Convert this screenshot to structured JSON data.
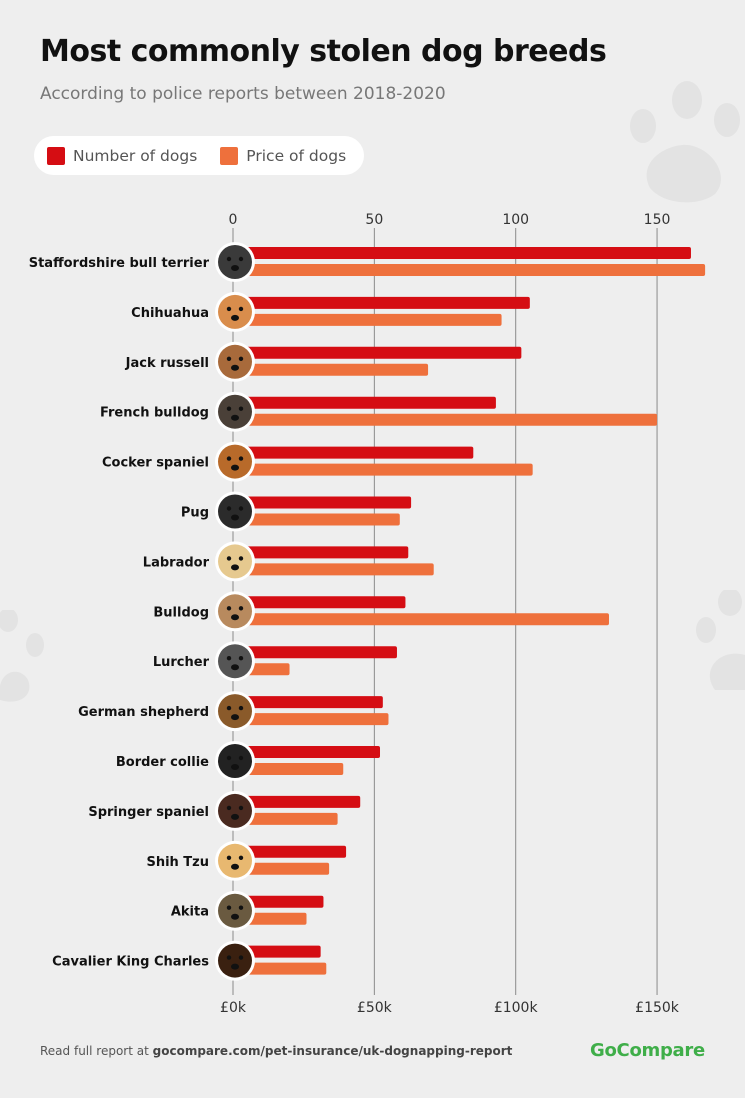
{
  "header": {
    "title": "Most commonly stolen dog breeds",
    "subtitle": "According to police reports between 2018-2020"
  },
  "legend": [
    {
      "label": "Number of dogs",
      "color": "#d50d13"
    },
    {
      "label": "Price of dogs",
      "color": "#ee703c"
    }
  ],
  "footer": {
    "prefix": "Read full report at ",
    "link": "gocompare.com/pet-insurance/uk-dognapping-report",
    "brand": "GoCompare"
  },
  "chart_data": {
    "type": "bar",
    "orientation": "horizontal",
    "categories": [
      "Staffordshire bull terrier",
      "Chihuahua",
      "Jack russell",
      "French bulldog",
      "Cocker spaniel",
      "Pug",
      "Labrador",
      "Bulldog",
      "Lurcher",
      "German shepherd",
      "Border collie",
      "Springer spaniel",
      "Shih Tzu",
      "Akita",
      "Cavalier King Charles"
    ],
    "series": [
      {
        "name": "Number of dogs",
        "axis": "top",
        "color": "#d50d13",
        "values": [
          162,
          105,
          102,
          93,
          85,
          63,
          62,
          61,
          58,
          53,
          52,
          45,
          40,
          32,
          31
        ]
      },
      {
        "name": "Price of dogs",
        "axis": "bottom",
        "color": "#ee703c",
        "values": [
          167000,
          95000,
          69000,
          150000,
          106000,
          59000,
          71000,
          133000,
          20000,
          55000,
          39000,
          37000,
          34000,
          26000,
          33000
        ]
      }
    ],
    "top_axis": {
      "ticks": [
        0,
        50,
        100,
        150
      ],
      "tick_labels": [
        "0",
        "50",
        "100",
        "150"
      ],
      "range": [
        0,
        170
      ]
    },
    "bottom_axis": {
      "ticks": [
        0,
        50000,
        100000,
        150000
      ],
      "tick_labels": [
        "£0k",
        "£50k",
        "£100k",
        "£150k"
      ],
      "range": [
        0,
        170000
      ]
    },
    "grid": true
  }
}
